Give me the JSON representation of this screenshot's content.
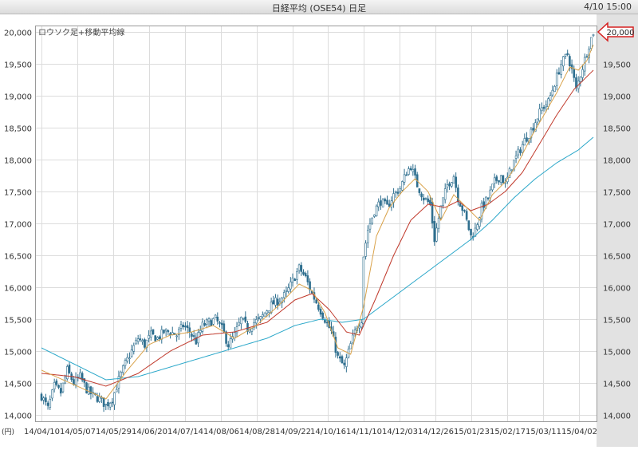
{
  "header": {
    "title": "日経平均 (OSE54) 日足",
    "timestamp": "4/10 15:00"
  },
  "chart_data": {
    "type": "candlestick",
    "legend_label": "ロウソク足+移動平均線",
    "y_unit": "(円)",
    "ylim": [
      13900,
      20100
    ],
    "yticks": [
      14000,
      14500,
      15000,
      15500,
      16000,
      16500,
      17000,
      17500,
      18000,
      18500,
      19000,
      19500,
      20000
    ],
    "ytick_labels": [
      "14,000",
      "14,500",
      "15,000",
      "15,500",
      "16,000",
      "16,500",
      "17,000",
      "17,500",
      "18,000",
      "18,500",
      "19,000",
      "19,500",
      "20,000"
    ],
    "xtick_labels": [
      "14/04/10",
      "14/05/07",
      "14/05/29",
      "14/06/20",
      "14/07/14",
      "14/08/06",
      "14/08/28",
      "14/09/22",
      "14/10/16",
      "14/11/10",
      "14/12/03",
      "14/12/26",
      "15/01/23",
      "15/02/17",
      "15/03/11",
      "15/04/02"
    ],
    "last_price_label": "20,000",
    "last_price": 20000,
    "grid": true,
    "colors": {
      "up": "#ffffff",
      "down": "#2f6f8f",
      "candle_outline": "#2f6f8f",
      "ma_short": "#d9a24a",
      "ma_mid": "#c0392b",
      "ma_long": "#2aa7c9",
      "arrow": "#d62020",
      "grid": "#dcdcdc",
      "right_panel": "#e2e2e2"
    },
    "close_path": [
      [
        0,
        14300
      ],
      [
        3,
        14100
      ],
      [
        6,
        14450
      ],
      [
        9,
        14350
      ],
      [
        12,
        14700
      ],
      [
        15,
        14500
      ],
      [
        18,
        14600
      ],
      [
        21,
        14400
      ],
      [
        24,
        14300
      ],
      [
        27,
        14250
      ],
      [
        30,
        14150
      ],
      [
        33,
        14250
      ],
      [
        36,
        14550
      ],
      [
        39,
        14800
      ],
      [
        42,
        15000
      ],
      [
        45,
        15200
      ],
      [
        48,
        15100
      ],
      [
        51,
        15250
      ],
      [
        54,
        15200
      ],
      [
        57,
        15300
      ],
      [
        60,
        15300
      ],
      [
        63,
        15250
      ],
      [
        66,
        15400
      ],
      [
        69,
        15300
      ],
      [
        72,
        15150
      ],
      [
        75,
        15400
      ],
      [
        78,
        15450
      ],
      [
        81,
        15500
      ],
      [
        84,
        15350
      ],
      [
        87,
        15100
      ],
      [
        90,
        15250
      ],
      [
        93,
        15500
      ],
      [
        96,
        15350
      ],
      [
        99,
        15450
      ],
      [
        102,
        15500
      ],
      [
        105,
        15650
      ],
      [
        108,
        15750
      ],
      [
        111,
        15800
      ],
      [
        114,
        15900
      ],
      [
        117,
        16100
      ],
      [
        120,
        16300
      ],
      [
        123,
        16150
      ],
      [
        126,
        15900
      ],
      [
        129,
        15700
      ],
      [
        132,
        15500
      ],
      [
        135,
        15300
      ],
      [
        138,
        14900
      ],
      [
        141,
        14750
      ],
      [
        144,
        15100
      ],
      [
        147,
        15400
      ],
      [
        149,
        15500
      ],
      [
        150,
        16500
      ],
      [
        152,
        16900
      ],
      [
        155,
        17200
      ],
      [
        158,
        17350
      ],
      [
        161,
        17250
      ],
      [
        164,
        17450
      ],
      [
        167,
        17550
      ],
      [
        170,
        17800
      ],
      [
        172,
        17900
      ],
      [
        175,
        17600
      ],
      [
        178,
        17400
      ],
      [
        181,
        17300
      ],
      [
        183,
        16750
      ],
      [
        186,
        17250
      ],
      [
        189,
        17600
      ],
      [
        192,
        17750
      ],
      [
        194,
        17400
      ],
      [
        197,
        17150
      ],
      [
        200,
        16800
      ],
      [
        202,
        16900
      ],
      [
        205,
        17250
      ],
      [
        208,
        17400
      ],
      [
        211,
        17650
      ],
      [
        214,
        17750
      ],
      [
        216,
        17600
      ],
      [
        219,
        17900
      ],
      [
        222,
        18100
      ],
      [
        225,
        18300
      ],
      [
        228,
        18450
      ],
      [
        230,
        18600
      ],
      [
        233,
        18800
      ],
      [
        236,
        18900
      ],
      [
        239,
        19200
      ],
      [
        242,
        19500
      ],
      [
        245,
        19650
      ],
      [
        247,
        19400
      ],
      [
        249,
        19100
      ],
      [
        252,
        19450
      ],
      [
        255,
        19800
      ],
      [
        257,
        20000
      ]
    ],
    "ma_short_path": [
      [
        0,
        14700
      ],
      [
        10,
        14550
      ],
      [
        20,
        14400
      ],
      [
        30,
        14250
      ],
      [
        40,
        14700
      ],
      [
        50,
        15100
      ],
      [
        60,
        15250
      ],
      [
        70,
        15300
      ],
      [
        80,
        15400
      ],
      [
        90,
        15200
      ],
      [
        100,
        15400
      ],
      [
        110,
        15700
      ],
      [
        120,
        16050
      ],
      [
        126,
        15950
      ],
      [
        132,
        15600
      ],
      [
        138,
        15050
      ],
      [
        144,
        14950
      ],
      [
        150,
        15700
      ],
      [
        156,
        16800
      ],
      [
        162,
        17250
      ],
      [
        168,
        17500
      ],
      [
        174,
        17700
      ],
      [
        180,
        17500
      ],
      [
        186,
        17050
      ],
      [
        192,
        17450
      ],
      [
        198,
        17250
      ],
      [
        204,
        17050
      ],
      [
        210,
        17450
      ],
      [
        216,
        17650
      ],
      [
        222,
        17950
      ],
      [
        228,
        18350
      ],
      [
        234,
        18700
      ],
      [
        240,
        19050
      ],
      [
        246,
        19450
      ],
      [
        250,
        19400
      ],
      [
        254,
        19550
      ],
      [
        257,
        19800
      ]
    ],
    "ma_mid_path": [
      [
        0,
        14650
      ],
      [
        15,
        14600
      ],
      [
        30,
        14450
      ],
      [
        45,
        14650
      ],
      [
        60,
        15000
      ],
      [
        75,
        15250
      ],
      [
        90,
        15300
      ],
      [
        105,
        15450
      ],
      [
        118,
        15800
      ],
      [
        126,
        15900
      ],
      [
        134,
        15650
      ],
      [
        142,
        15300
      ],
      [
        148,
        15250
      ],
      [
        156,
        15850
      ],
      [
        164,
        16500
      ],
      [
        172,
        17050
      ],
      [
        180,
        17300
      ],
      [
        188,
        17250
      ],
      [
        194,
        17350
      ],
      [
        200,
        17200
      ],
      [
        208,
        17300
      ],
      [
        216,
        17500
      ],
      [
        224,
        17800
      ],
      [
        232,
        18250
      ],
      [
        240,
        18700
      ],
      [
        248,
        19100
      ],
      [
        257,
        19400
      ]
    ],
    "ma_long_path": [
      [
        0,
        15050
      ],
      [
        15,
        14800
      ],
      [
        30,
        14550
      ],
      [
        45,
        14600
      ],
      [
        60,
        14750
      ],
      [
        75,
        14900
      ],
      [
        90,
        15050
      ],
      [
        105,
        15200
      ],
      [
        118,
        15400
      ],
      [
        130,
        15500
      ],
      [
        140,
        15450
      ],
      [
        150,
        15500
      ],
      [
        160,
        15750
      ],
      [
        170,
        16000
      ],
      [
        180,
        16250
      ],
      [
        190,
        16500
      ],
      [
        200,
        16750
      ],
      [
        210,
        17050
      ],
      [
        220,
        17400
      ],
      [
        230,
        17700
      ],
      [
        240,
        17950
      ],
      [
        250,
        18150
      ],
      [
        257,
        18350
      ]
    ]
  }
}
